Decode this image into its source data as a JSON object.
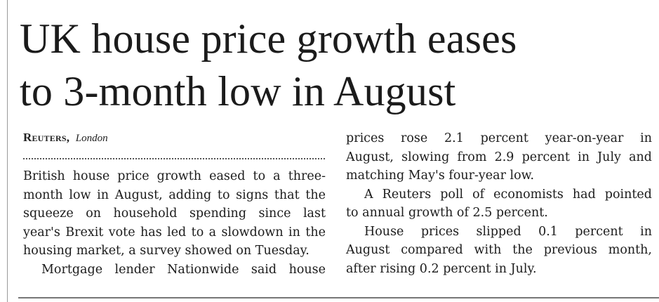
{
  "article": {
    "headline": {
      "line1": "UK house price growth eases",
      "line2": "to 3-month low in August"
    },
    "byline": {
      "agency": "Reuters",
      "separator": ",",
      "city": "London"
    },
    "columns": {
      "left": [
        "British house price growth eased to a three-",
        "month low in August, adding to signs that the",
        "squeeze on household spending since last",
        "year's Brexit vote has led to a slowdown in the",
        "housing market, a survey showed on Tuesday.",
        "Mortgage lender Nationwide said house"
      ],
      "right": [
        "prices rose 2.1 percent year-on-year in",
        "August, slowing from 2.9 percent in July and",
        "matching May's four-year low.",
        "A Reuters poll of economists had pointed",
        "to annual growth of 2.5 percent.",
        "House prices slipped 0.1 percent in",
        "August compared with the previous month,",
        "after rising 0.2 percent in July."
      ]
    }
  }
}
